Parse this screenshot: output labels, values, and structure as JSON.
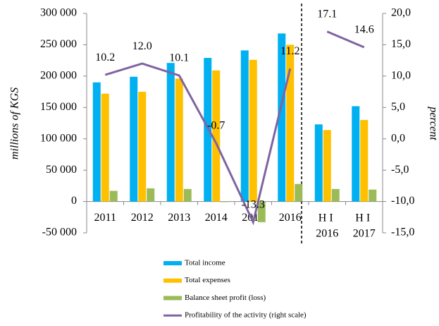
{
  "chart_data": {
    "type": "bar",
    "y_label": "millions of KGS",
    "y2_label": "percent",
    "categories": [
      "2011",
      "2012",
      "2013",
      "2014",
      "2015",
      "2016",
      "H I 2016",
      "H I 2017"
    ],
    "divider_after": "2016",
    "series": [
      {
        "name": "Total income",
        "color": "#00b0f0",
        "type": "bar",
        "values": [
          190000,
          199000,
          221000,
          229000,
          241000,
          268000,
          123000,
          152000
        ]
      },
      {
        "name": "Total expenses",
        "color": "#ffc000",
        "type": "bar",
        "values": [
          172000,
          175000,
          196000,
          209000,
          226000,
          250000,
          114000,
          130000
        ]
      },
      {
        "name": "Balance sheet profit (loss)",
        "color": "#9bbb59",
        "type": "bar",
        "values": [
          17000,
          21000,
          20000,
          -1000,
          -33000,
          28000,
          20000,
          19000
        ]
      },
      {
        "name": "Profitability of the activity (right scale)",
        "color": "#8064a2",
        "type": "line",
        "axis": "y2",
        "values": [
          10.2,
          12.0,
          10.1,
          -0.7,
          -13.3,
          11.2,
          17.1,
          14.6
        ],
        "value_labels": [
          "10.2",
          "12.0",
          "10.1",
          "-0.7",
          "-13.3",
          "11.2",
          "17.1",
          "14.6"
        ]
      }
    ],
    "ylim": [
      -50000,
      300000
    ],
    "yticks": [
      {
        "value": -50000,
        "label": "-50 000"
      },
      0,
      {
        "value": 50000,
        "label": "50 000"
      },
      {
        "value": 100000,
        "label": "100 000"
      },
      {
        "value": 150000,
        "label": "150 000"
      },
      {
        "value": 200000,
        "label": "200 000"
      },
      {
        "value": 250000,
        "label": "250 000"
      },
      {
        "value": 300000,
        "label": "300 000"
      }
    ],
    "y2lim": [
      -15,
      20
    ],
    "y2ticks": [
      {
        "value": -15,
        "label": "-15,0"
      },
      {
        "value": -10,
        "label": "-10,0"
      },
      {
        "value": -5,
        "label": "-5,0"
      },
      {
        "value": 0,
        "label": "0,0"
      },
      {
        "value": 5,
        "label": "5,0"
      },
      {
        "value": 10,
        "label": "10,0"
      },
      {
        "value": 15,
        "label": "15,0"
      },
      {
        "value": 20,
        "label": "20,0"
      }
    ],
    "legend": "bottom"
  }
}
